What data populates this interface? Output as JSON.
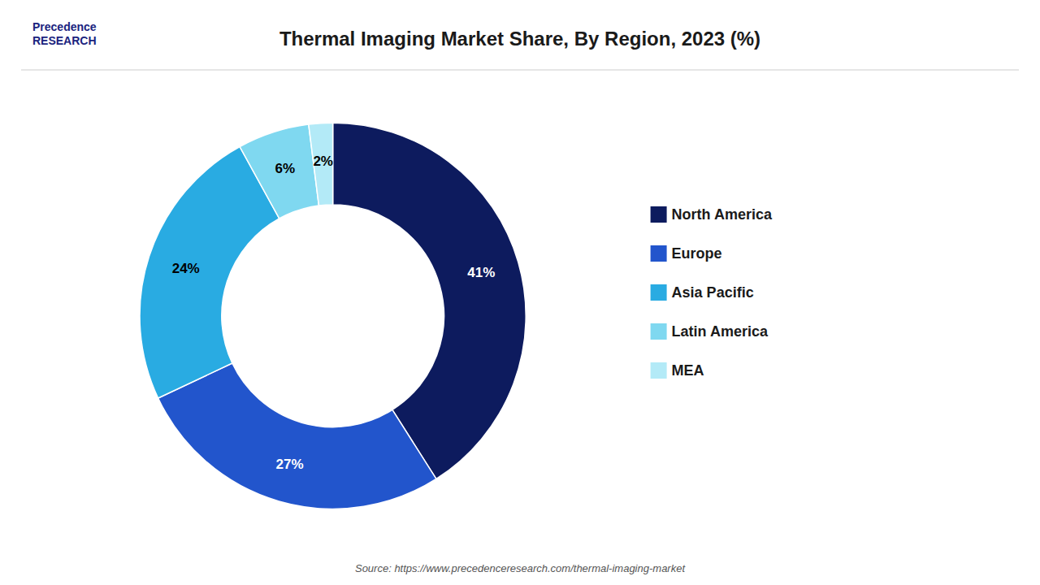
{
  "chart_data": {
    "type": "pie",
    "title": "Thermal Imaging Market Share, By Region, 2023 (%)",
    "categories": [
      "North America",
      "Europe",
      "Asia Pacific",
      "Latin America",
      "MEA"
    ],
    "values": [
      41,
      27,
      24,
      6,
      2
    ],
    "value_labels": [
      "41%",
      "27%",
      "24%",
      "6%",
      "2%"
    ],
    "colors": [
      "#0d1b5e",
      "#2255cc",
      "#29abe2",
      "#7fd8f0",
      "#b3eaf7"
    ],
    "data_labels": true,
    "legend": "right",
    "annotations": [
      "Source: https://www.precedenceresearch.com/thermal-imaging-market",
      "Precedence\nRESEARCH"
    ]
  }
}
